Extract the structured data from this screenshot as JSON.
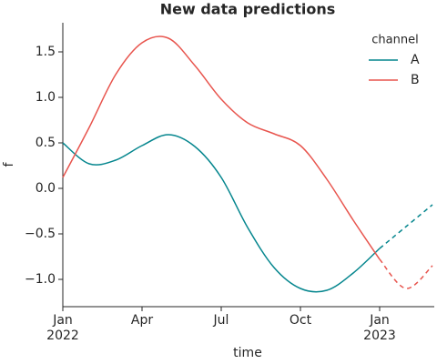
{
  "chart_data": {
    "type": "line",
    "title": "New data predictions",
    "x_label": "time",
    "y_label": "f",
    "x": [
      "2022-01",
      "2022-02",
      "2022-03",
      "2022-04",
      "2022-05",
      "2022-06",
      "2022-07",
      "2022-08",
      "2022-09",
      "2022-10",
      "2022-11",
      "2022-12",
      "2023-01",
      "2023-02",
      "2023-03"
    ],
    "series": [
      {
        "name": "A",
        "color": "#05868e",
        "values": [
          0.5,
          0.27,
          0.31,
          0.47,
          0.59,
          0.46,
          0.12,
          -0.43,
          -0.87,
          -1.1,
          -1.12,
          -0.93,
          -0.66,
          -0.42,
          -0.18
        ]
      },
      {
        "name": "B",
        "color": "#e8554e",
        "values": [
          0.12,
          0.67,
          1.25,
          1.6,
          1.65,
          1.35,
          0.98,
          0.72,
          0.6,
          0.47,
          0.1,
          -0.35,
          -0.78,
          -1.1,
          -0.85
        ]
      }
    ],
    "forecast_from": "2023-01",
    "legend_title": "channel",
    "legend": "upper right",
    "xlim": [
      "2022-01",
      "2023-03"
    ],
    "xticks": [
      {
        "value": "2022-01",
        "label": [
          "Jan",
          "2022"
        ]
      },
      {
        "value": "2022-04",
        "label": [
          "Apr"
        ]
      },
      {
        "value": "2022-07",
        "label": [
          "Jul"
        ]
      },
      {
        "value": "2022-10",
        "label": [
          "Oct"
        ]
      },
      {
        "value": "2023-01",
        "label": [
          "Jan",
          "2023"
        ]
      }
    ],
    "ylim": [
      -1.3,
      1.82
    ],
    "yticks": [
      1.5,
      {
        "value": 1.0,
        "label": "1.0"
      },
      0.5,
      {
        "value": 0.0,
        "label": "0.0"
      },
      {
        "value": -0.5,
        "label": "−0.5"
      },
      {
        "value": -1.0,
        "label": "−1.0"
      }
    ],
    "grid": false
  }
}
